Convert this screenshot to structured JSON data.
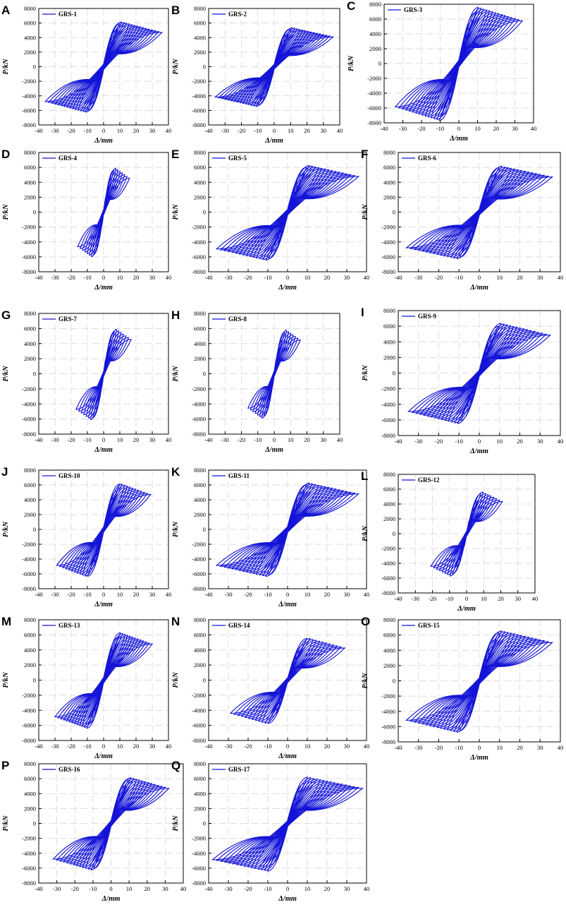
{
  "figure": {
    "xlabel": "Δ/mm",
    "ylabel": "P/kN",
    "series_color": "#1414d8"
  },
  "chart_data": [
    {
      "letter": "A",
      "title": "GRS-1",
      "type": "line",
      "legend": "GRS-1",
      "xlabel": "Δ/mm",
      "ylabel": "P/kN",
      "xlim": [
        -40,
        40
      ],
      "ylim": [
        -8000,
        8000
      ],
      "xticks": [
        -40,
        -30,
        -20,
        -10,
        0,
        10,
        20,
        30,
        40
      ],
      "yticks": [
        -8000,
        -6000,
        -4000,
        -2000,
        0,
        2000,
        4000,
        6000,
        8000
      ],
      "dmax": 36,
      "peak": 6200,
      "valley": -6300,
      "cycles": 24
    },
    {
      "letter": "B",
      "title": "GRS-2",
      "type": "line",
      "legend": "GRS-2",
      "xlabel": "Δ/mm",
      "ylabel": "P/kN",
      "xlim": [
        -40,
        40
      ],
      "ylim": [
        -8000,
        8000
      ],
      "xticks": [
        -40,
        -30,
        -20,
        -10,
        0,
        10,
        20,
        30,
        40
      ],
      "yticks": [
        -8000,
        -6000,
        -4000,
        -2000,
        0,
        2000,
        4000,
        6000,
        8000
      ],
      "dmax": 36,
      "peak": 5400,
      "valley": -5500,
      "cycles": 24
    },
    {
      "letter": "C",
      "title": "GRS-3",
      "type": "line",
      "legend": "GRS-3",
      "xlabel": "Δ/mm",
      "ylabel": "P/kN",
      "xlim": [
        -40,
        40
      ],
      "ylim": [
        -8000,
        8000
      ],
      "xticks": [
        -40,
        -30,
        -20,
        -10,
        0,
        10,
        20,
        30,
        40
      ],
      "yticks": [
        -8000,
        -6000,
        -4000,
        -2000,
        0,
        2000,
        4000,
        6000,
        8000
      ],
      "dmax": 34,
      "peak": 7600,
      "valley": -7700,
      "cycles": 24
    },
    {
      "letter": "D",
      "title": "GRS-4",
      "type": "line",
      "legend": "GRS-4",
      "xlabel": "Δ/mm",
      "ylabel": "P/kN",
      "xlim": [
        -40,
        40
      ],
      "ylim": [
        -8000,
        8000
      ],
      "xticks": [
        -40,
        -30,
        -20,
        -10,
        0,
        10,
        20,
        30,
        40
      ],
      "yticks": [
        -8000,
        -6000,
        -4000,
        -2000,
        0,
        2000,
        4000,
        6000,
        8000
      ],
      "dmax": 16,
      "peak": 6000,
      "valley": -6100,
      "cycles": 14
    },
    {
      "letter": "E",
      "title": "GRS-5",
      "type": "line",
      "legend": "GRS-5",
      "xlabel": "Δ/mm",
      "ylabel": "P/kN",
      "xlim": [
        -40,
        40
      ],
      "ylim": [
        -8000,
        8000
      ],
      "xticks": [
        -40,
        -30,
        -20,
        -10,
        0,
        10,
        20,
        30,
        40
      ],
      "yticks": [
        -8000,
        -6000,
        -4000,
        -2000,
        0,
        2000,
        4000,
        6000,
        8000
      ],
      "dmax": 36,
      "peak": 6300,
      "valley": -6500,
      "cycles": 24
    },
    {
      "letter": "F",
      "title": "GRS-6",
      "type": "line",
      "legend": "GRS-6",
      "xlabel": "Δ/mm",
      "ylabel": "P/kN",
      "xlim": [
        -40,
        40
      ],
      "ylim": [
        -8000,
        8000
      ],
      "xticks": [
        -40,
        -30,
        -20,
        -10,
        0,
        10,
        20,
        30,
        40
      ],
      "yticks": [
        -8000,
        -6000,
        -4000,
        -2000,
        0,
        2000,
        4000,
        6000,
        8000
      ],
      "dmax": 36,
      "peak": 6200,
      "valley": -6300,
      "cycles": 24
    },
    {
      "letter": "G",
      "title": "GRS-7",
      "type": "line",
      "legend": "GRS-7",
      "xlabel": "Δ/mm",
      "ylabel": "P/kN",
      "xlim": [
        -40,
        40
      ],
      "ylim": [
        -8000,
        8000
      ],
      "xticks": [
        -40,
        -30,
        -20,
        -10,
        0,
        10,
        20,
        30,
        40
      ],
      "yticks": [
        -8000,
        -6000,
        -4000,
        -2000,
        0,
        2000,
        4000,
        6000,
        8000
      ],
      "dmax": 17,
      "peak": 6000,
      "valley": -6200,
      "cycles": 14
    },
    {
      "letter": "H",
      "title": "GRS-8",
      "type": "line",
      "legend": "GRS-8",
      "xlabel": "Δ/mm",
      "ylabel": "P/kN",
      "xlim": [
        -40,
        40
      ],
      "ylim": [
        -8000,
        8000
      ],
      "xticks": [
        -40,
        -30,
        -20,
        -10,
        0,
        10,
        20,
        30,
        40
      ],
      "yticks": [
        -8000,
        -6000,
        -4000,
        -2000,
        0,
        2000,
        4000,
        6000,
        8000
      ],
      "dmax": 16,
      "peak": 5900,
      "valley": -6000,
      "cycles": 14
    },
    {
      "letter": "I",
      "title": "GRS-9",
      "type": "line",
      "legend": "GRS-9",
      "xlabel": "Δ/mm",
      "ylabel": "P/kN",
      "xlim": [
        -40,
        40
      ],
      "ylim": [
        -8000,
        8000
      ],
      "xticks": [
        -40,
        -30,
        -20,
        -10,
        0,
        10,
        20,
        30,
        40
      ],
      "yticks": [
        -8000,
        -6000,
        -4000,
        -2000,
        0,
        2000,
        4000,
        6000,
        8000
      ],
      "dmax": 35,
      "peak": 6400,
      "valley": -6500,
      "cycles": 24
    },
    {
      "letter": "J",
      "title": "GRS-10",
      "type": "line",
      "legend": "GRS-10",
      "xlabel": "Δ/mm",
      "ylabel": "P/kN",
      "xlim": [
        -40,
        40
      ],
      "ylim": [
        -8000,
        8000
      ],
      "xticks": [
        -40,
        -30,
        -20,
        -10,
        0,
        10,
        20,
        30,
        40
      ],
      "yticks": [
        -8000,
        -6000,
        -4000,
        -2000,
        0,
        2000,
        4000,
        6000,
        8000
      ],
      "dmax": 29,
      "peak": 6200,
      "valley": -6400,
      "cycles": 20
    },
    {
      "letter": "K",
      "title": "GRS-11",
      "type": "line",
      "legend": "GRS-11",
      "xlabel": "Δ/mm",
      "ylabel": "P/kN",
      "xlim": [
        -40,
        40
      ],
      "ylim": [
        -8000,
        8000
      ],
      "xticks": [
        -40,
        -30,
        -20,
        -10,
        0,
        10,
        20,
        30,
        40
      ],
      "yticks": [
        -8000,
        -6000,
        -4000,
        -2000,
        0,
        2000,
        4000,
        6000,
        8000
      ],
      "dmax": 36,
      "peak": 6300,
      "valley": -6400,
      "cycles": 24
    },
    {
      "letter": "L",
      "title": "GRS-12",
      "type": "line",
      "legend": "GRS-12",
      "xlabel": "Δ/mm",
      "ylabel": "P/kN",
      "xlim": [
        -40,
        40
      ],
      "ylim": [
        -8000,
        8000
      ],
      "xticks": [
        -40,
        -30,
        -20,
        -10,
        0,
        10,
        20,
        30,
        40
      ],
      "yticks": [
        -8000,
        -6000,
        -4000,
        -2000,
        0,
        2000,
        4000,
        6000,
        8000
      ],
      "dmax": 21,
      "peak": 5700,
      "valley": -5800,
      "cycles": 16
    },
    {
      "letter": "M",
      "title": "GRS-13",
      "type": "line",
      "legend": "GRS-13",
      "xlabel": "Δ/mm",
      "ylabel": "P/kN",
      "xlim": [
        -40,
        40
      ],
      "ylim": [
        -8000,
        8000
      ],
      "xticks": [
        -40,
        -30,
        -20,
        -10,
        0,
        10,
        20,
        30,
        40
      ],
      "yticks": [
        -8000,
        -6000,
        -4000,
        -2000,
        0,
        2000,
        4000,
        6000,
        8000
      ],
      "dmax": 30,
      "peak": 6300,
      "valley": -6400,
      "cycles": 22
    },
    {
      "letter": "N",
      "title": "GRS-14",
      "type": "line",
      "legend": "GRS-14",
      "xlabel": "Δ/mm",
      "ylabel": "P/kN",
      "xlim": [
        -40,
        40
      ],
      "ylim": [
        -8000,
        8000
      ],
      "xticks": [
        -40,
        -30,
        -20,
        -10,
        0,
        10,
        20,
        30,
        40
      ],
      "yticks": [
        -8000,
        -6000,
        -4000,
        -2000,
        0,
        2000,
        4000,
        6000,
        8000
      ],
      "dmax": 29,
      "peak": 5600,
      "valley": -5800,
      "cycles": 20
    },
    {
      "letter": "O",
      "title": "GRS-15",
      "type": "line",
      "legend": "GRS-15",
      "xlabel": "Δ/mm",
      "ylabel": "P/kN",
      "xlim": [
        -40,
        40
      ],
      "ylim": [
        -8000,
        8000
      ],
      "xticks": [
        -40,
        -30,
        -20,
        -10,
        0,
        10,
        20,
        30,
        40
      ],
      "yticks": [
        -8000,
        -6000,
        -4000,
        -2000,
        0,
        2000,
        4000,
        6000,
        8000
      ],
      "dmax": 36,
      "peak": 6600,
      "valley": -6800,
      "cycles": 24
    },
    {
      "letter": "P",
      "title": "GRS-16",
      "type": "line",
      "legend": "GRS-16",
      "xlabel": "Δ/mm",
      "ylabel": "P/kN",
      "xlim": [
        -40,
        40
      ],
      "ylim": [
        -8000,
        8000
      ],
      "xticks": [
        -40,
        -30,
        -20,
        -10,
        0,
        10,
        20,
        30,
        40
      ],
      "yticks": [
        -8000,
        -6000,
        -4000,
        -2000,
        0,
        2000,
        4000,
        6000,
        8000
      ],
      "dmax": 32,
      "peak": 6200,
      "valley": -6300,
      "cycles": 22
    },
    {
      "letter": "Q",
      "title": "GRS-17",
      "type": "line",
      "legend": "GRS-17",
      "xlabel": "Δ/mm",
      "ylabel": "P/kN",
      "xlim": [
        -40,
        40
      ],
      "ylim": [
        -8000,
        8000
      ],
      "xticks": [
        -40,
        -30,
        -20,
        -10,
        0,
        10,
        20,
        30,
        40
      ],
      "yticks": [
        -8000,
        -6000,
        -4000,
        -2000,
        0,
        2000,
        4000,
        6000,
        8000
      ],
      "dmax": 38,
      "peak": 6200,
      "valley": -6400,
      "cycles": 24
    }
  ]
}
